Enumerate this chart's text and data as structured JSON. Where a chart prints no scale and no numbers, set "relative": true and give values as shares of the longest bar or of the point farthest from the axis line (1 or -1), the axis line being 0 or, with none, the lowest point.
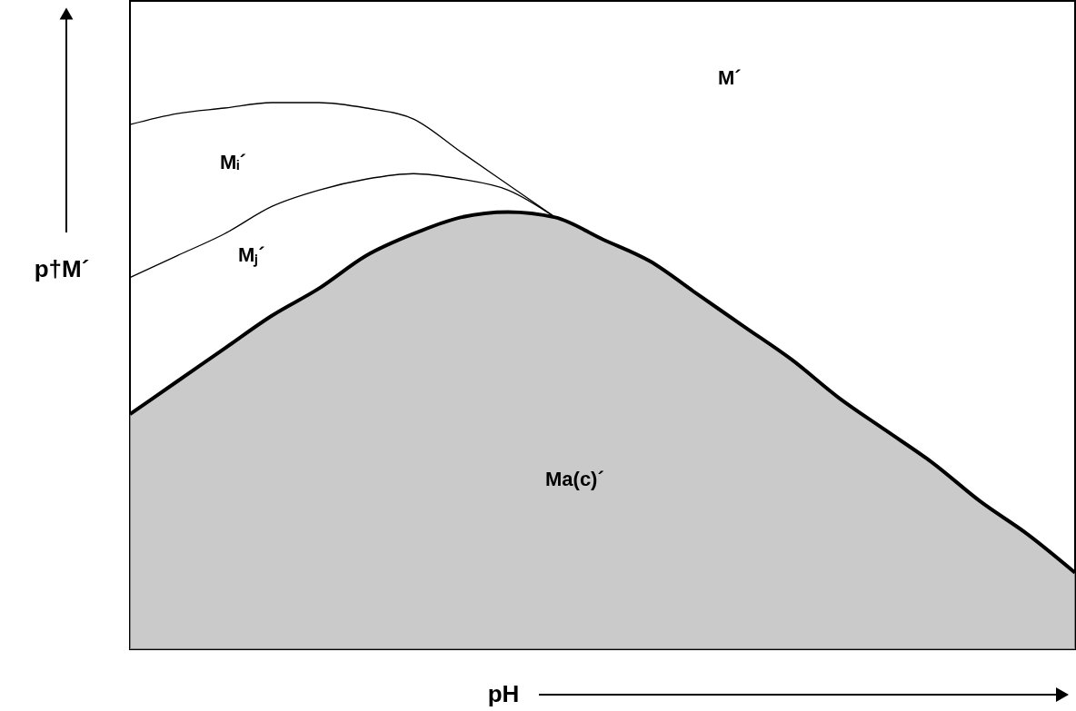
{
  "chart_data": {
    "type": "line",
    "relative": true,
    "xlabel": "pH",
    "ylabel": "p†M´",
    "categories": [
      null,
      null,
      null,
      null,
      null,
      null,
      null,
      null,
      null,
      null,
      null,
      null,
      null,
      null,
      null,
      null,
      null,
      null,
      null,
      null,
      null
    ],
    "series": [
      {
        "type": "area",
        "color": "#b4b4b4",
        "values": [
          0.43,
          0.49,
          0.55,
          0.61,
          0.66,
          0.72,
          0.76,
          0.79,
          0.8,
          0.79,
          0.75,
          0.71,
          0.65,
          0.59,
          0.53,
          0.46,
          0.4,
          0.34,
          0.27,
          0.21,
          0.14
        ]
      },
      {
        "color": "#000000",
        "values": [
          0.96,
          0.98,
          0.99,
          1,
          1,
          0.99,
          0.97,
          0.91,
          0.85,
          0.79,
          null,
          null,
          null,
          null,
          null,
          null,
          null,
          null,
          null,
          null,
          null
        ]
      },
      {
        "color": "#000000",
        "values": [
          0.68,
          0.72,
          0.76,
          0.81,
          0.84,
          0.86,
          0.87,
          0.86,
          0.84,
          0.79,
          null,
          null,
          null,
          null,
          null,
          null,
          null,
          null,
          null,
          null,
          null
        ]
      }
    ],
    "annotations": [
      "M´",
      "Mᵢ´",
      "Mⱼ´",
      "Ma(c)´"
    ],
    "grid": false,
    "marker": "none",
    "line_style": "solid"
  }
}
